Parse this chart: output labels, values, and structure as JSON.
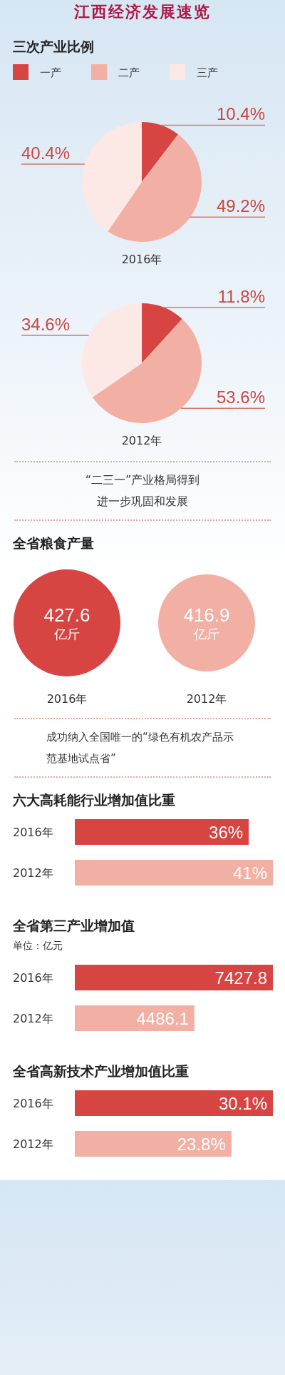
{
  "chart_data": [
    {
      "type": "pie",
      "title": "江西经济发展速览",
      "subtitle": "三次产业比例",
      "categories": [
        "一产",
        "二产",
        "三产"
      ],
      "values": [
        10.4,
        49.2,
        40.4
      ],
      "colors": [
        "#d64541",
        "#f2b0a4",
        "#fce8e5"
      ],
      "value_labels": [
        "10.4%",
        "49.2%",
        "40.4%"
      ],
      "xlabel": "2016年",
      "legend": "top left"
    },
    {
      "type": "pie",
      "values": [
        11.8,
        53.6,
        34.6
      ],
      "colors": [
        "#d64541",
        "#f2b0a4",
        "#fce8e5"
      ],
      "value_labels": [
        "11.8%",
        "53.6%",
        "34.6%"
      ],
      "xlabel": "2012年",
      "annotations": [
        "“二三一”产业格局得到进一步巩固和发展"
      ]
    },
    {
      "type": "other",
      "title": "全省粮食产量",
      "categories": [
        "2016年",
        "2012年"
      ],
      "values": [
        427.6,
        416.9
      ],
      "colors": [
        "#d64541",
        "#f2b0a4"
      ],
      "value_labels": [
        "427.6 亿斤",
        "416.9 亿斤"
      ],
      "annotations": [
        "成功纳入全国唯一的“绿色有机农产品示范基地试点省”"
      ]
    },
    {
      "type": "bar",
      "orientation": "horizontal",
      "title": "六大高耗能行业增加值比重",
      "categories": [
        "2016年",
        "2012年"
      ],
      "values": [
        36,
        41
      ],
      "colors": [
        "#d64541",
        "#f2b0a4"
      ],
      "value_labels": [
        "36%",
        "41%"
      ]
    },
    {
      "type": "bar",
      "orientation": "horizontal",
      "title": "全省第三产业增加值",
      "ylabel": "单位：亿元",
      "categories": [
        "2016年",
        "2012年"
      ],
      "values": [
        7427.8,
        4486.1
      ],
      "colors": [
        "#d64541",
        "#f2b0a4"
      ],
      "data_labels": true
    },
    {
      "type": "bar",
      "orientation": "horizontal",
      "title": "全省高新技术产业增加值比重",
      "categories": [
        "2016年",
        "2012年"
      ],
      "values": [
        30.1,
        23.8
      ],
      "colors": [
        "#d64541",
        "#f2b0a4"
      ],
      "value_labels": [
        "30.1%",
        "23.8%"
      ]
    }
  ]
}
